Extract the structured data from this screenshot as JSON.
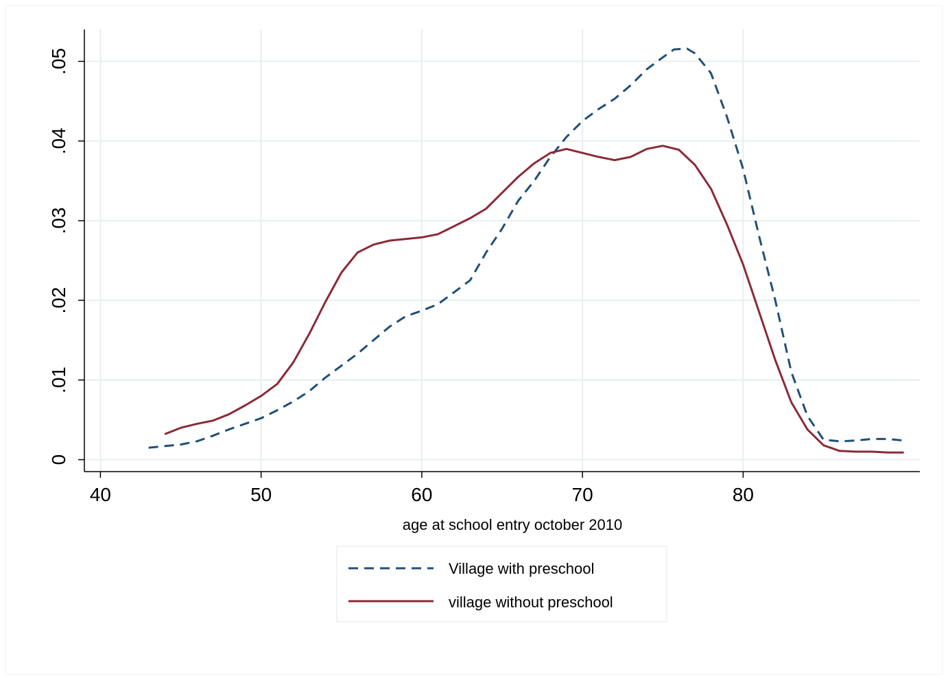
{
  "chart_data": {
    "type": "line",
    "title": "",
    "xlabel": "age at school entry october 2010",
    "ylabel": "",
    "xlim": [
      39,
      91
    ],
    "ylim": [
      -0.0015,
      0.054
    ],
    "x_ticks": [
      40,
      50,
      60,
      70,
      80
    ],
    "x_tick_labels": [
      "40",
      "50",
      "60",
      "70",
      "80"
    ],
    "y_ticks": [
      0,
      0.01,
      0.02,
      0.03,
      0.04,
      0.05
    ],
    "y_tick_labels": [
      "0",
      ".01",
      ".02",
      ".03",
      ".04",
      ".05"
    ],
    "grid": true,
    "legend_position": "bottom",
    "series": [
      {
        "name": "Village with preschool",
        "color": "#1f4e79",
        "dash": "dashed",
        "x": [
          43,
          44,
          45,
          46,
          47,
          48,
          49,
          50,
          51,
          52,
          53,
          54,
          55,
          56,
          57,
          58,
          59,
          60,
          61,
          62,
          63,
          64,
          65,
          66,
          67,
          68,
          69,
          70,
          71,
          72,
          73,
          74,
          75,
          75.7,
          76.5,
          77,
          78,
          79,
          80,
          81,
          82,
          83,
          84,
          85,
          86,
          87,
          88,
          89,
          90
        ],
        "values": [
          0.0015,
          0.0017,
          0.0019,
          0.0023,
          0.003,
          0.0038,
          0.0045,
          0.0052,
          0.0062,
          0.0073,
          0.0086,
          0.0103,
          0.0118,
          0.0133,
          0.015,
          0.0167,
          0.018,
          0.0187,
          0.0195,
          0.021,
          0.0225,
          0.026,
          0.029,
          0.0325,
          0.035,
          0.038,
          0.0405,
          0.0425,
          0.044,
          0.0453,
          0.047,
          0.049,
          0.0505,
          0.0515,
          0.0516,
          0.051,
          0.0485,
          0.043,
          0.0365,
          0.028,
          0.02,
          0.011,
          0.0055,
          0.0025,
          0.0023,
          0.0024,
          0.0026,
          0.0026,
          0.0024
        ]
      },
      {
        "name": "village without preschool",
        "color": "#8b2a36",
        "dash": "solid",
        "x": [
          44,
          45,
          46,
          47,
          48,
          49,
          50,
          51,
          52,
          53,
          54,
          55,
          56,
          57,
          58,
          59,
          60,
          61,
          62,
          63,
          64,
          65,
          66,
          67,
          68,
          69,
          70,
          71,
          72,
          73,
          74,
          75,
          76,
          77,
          78,
          79,
          80,
          81,
          82,
          83,
          84,
          85,
          86,
          87,
          88,
          89,
          90
        ],
        "values": [
          0.0032,
          0.004,
          0.0045,
          0.0049,
          0.0057,
          0.0068,
          0.008,
          0.0095,
          0.0122,
          0.0158,
          0.0198,
          0.0235,
          0.026,
          0.027,
          0.0275,
          0.0277,
          0.0279,
          0.0283,
          0.0293,
          0.0303,
          0.0315,
          0.0335,
          0.0355,
          0.0372,
          0.0385,
          0.039,
          0.0385,
          0.038,
          0.0376,
          0.038,
          0.039,
          0.0394,
          0.0389,
          0.037,
          0.034,
          0.0295,
          0.0245,
          0.0185,
          0.0125,
          0.0072,
          0.0038,
          0.0018,
          0.0011,
          0.001,
          0.001,
          0.0009,
          0.0009
        ]
      }
    ]
  }
}
